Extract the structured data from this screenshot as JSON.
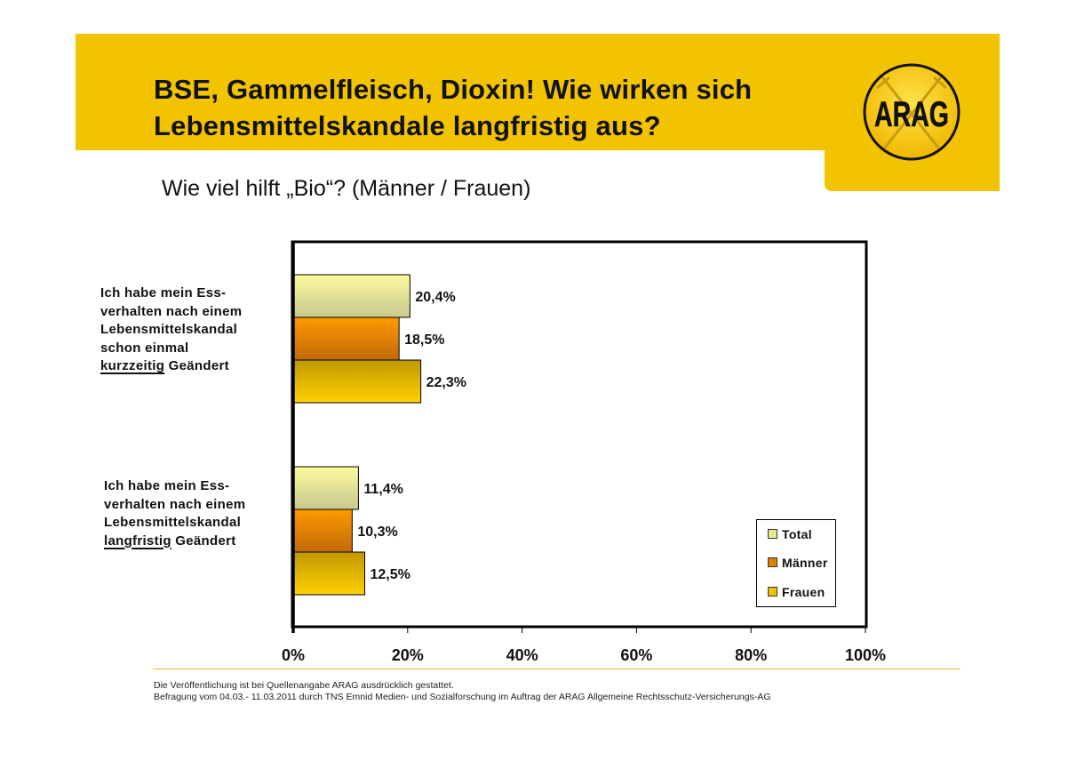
{
  "header": {
    "title_line1": "BSE, Gammelfleisch, Dioxin! Wie wirken sich",
    "title_line2": "Lebensmittelskandale langfristig aus?",
    "subtitle": "Wie viel hilft „Bio“? (Männer / Frauen)",
    "logo_text": "ARAG",
    "brand_color": "#f2c300"
  },
  "chart_data": {
    "type": "bar",
    "orientation": "horizontal",
    "title": "Wie viel hilft „Bio“? (Männer / Frauen)",
    "categories": [
      {
        "lines": [
          "Ich habe mein Ess-",
          "verhalten nach einem",
          "Lebensmittelskandal",
          "schon einmal"
        ],
        "last_underlined": "kurzzeitig",
        "last_rest": " Geändert"
      },
      {
        "lines": [
          "Ich habe mein Ess-",
          "verhalten nach einem",
          "Lebensmittelskandal"
        ],
        "last_underlined": "langfristig",
        "last_rest": " Geändert"
      }
    ],
    "series": [
      {
        "name": "Total",
        "values": [
          20.4,
          11.4
        ],
        "labels": [
          "20,4%",
          "11,4%"
        ],
        "color_top": "#fbfa9c",
        "color_bottom": "#c8c890"
      },
      {
        "name": "Männer",
        "values": [
          18.5,
          10.3
        ],
        "labels": [
          "18,5%",
          "10,3%"
        ],
        "color_top": "#ff9a00",
        "color_bottom": "#c06a08"
      },
      {
        "name": "Frauen",
        "values": [
          22.3,
          12.5
        ],
        "labels": [
          "22,3%",
          "12,5%"
        ],
        "color_top": "#c09800",
        "color_bottom": "#ffd000"
      }
    ],
    "xlim": [
      0,
      100
    ],
    "xticks": [
      0,
      20,
      40,
      60,
      80,
      100
    ],
    "xtick_labels": [
      "0%",
      "20%",
      "40%",
      "60%",
      "80%",
      "100%"
    ],
    "xlabel": "",
    "ylabel": "",
    "grid": false,
    "legend_position": "bottom-right"
  },
  "legend": {
    "items": [
      {
        "label": "Total",
        "color": "#e8e890"
      },
      {
        "label": "Männer",
        "color": "#e08000"
      },
      {
        "label": "Frauen",
        "color": "#f0c000"
      }
    ]
  },
  "footer": {
    "line1": "Die Veröffentlichung ist bei Quellenangabe ARAG ausdrücklich gestattet.",
    "line2": "Befragung vom 04.03.- 11.03.2011 durch TNS Emnid Medien- und Sozialforschung im Auftrag der ARAG Allgemeine Rechtsschutz-Versicherungs-AG"
  }
}
